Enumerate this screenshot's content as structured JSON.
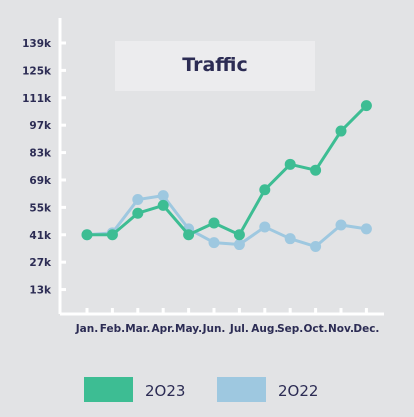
{
  "chart_data": {
    "type": "line",
    "title": "Traffic",
    "categories": [
      "Jan.",
      "Feb.",
      "Mar.",
      "Apr.",
      "May.",
      "Jun.",
      "Jul.",
      "Aug.",
      "Sep.",
      "Oct.",
      "Nov.",
      "Dec."
    ],
    "yticks": [
      "13k",
      "27k",
      "41k",
      "55k",
      "69k",
      "83k",
      "97k",
      "111k",
      "125k",
      "139k"
    ],
    "ylim": [
      0,
      139
    ],
    "series": [
      {
        "name": "2O23",
        "color": "#3dbd93",
        "values": [
          41,
          41,
          52,
          56,
          41,
          47,
          41,
          64,
          77,
          74,
          94,
          107
        ]
      },
      {
        "name": "2O22",
        "color": "#9ec8e0",
        "values": [
          41,
          42,
          59,
          61,
          44,
          37,
          36,
          45,
          39,
          35,
          46,
          44
        ]
      }
    ],
    "grid": false,
    "legend_position": "bottom"
  }
}
